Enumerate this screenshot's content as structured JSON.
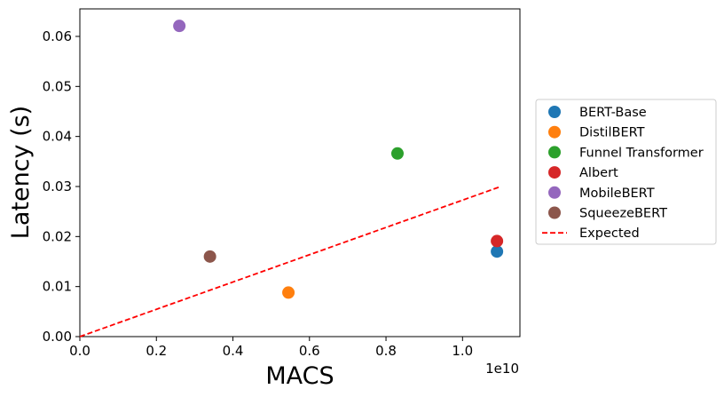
{
  "chart_data": {
    "type": "scatter",
    "title": "",
    "xlabel": "MACS",
    "ylabel": "Latency (s)",
    "x_offset_label": "1e10",
    "xlim": [
      0,
      11.5
    ],
    "ylim": [
      0,
      0.0655
    ],
    "x_ticks": [
      {
        "value": 0.0,
        "label": "0.0"
      },
      {
        "value": 2.0,
        "label": "0.2"
      },
      {
        "value": 4.0,
        "label": "0.4"
      },
      {
        "value": 6.0,
        "label": "0.6"
      },
      {
        "value": 8.0,
        "label": "0.8"
      },
      {
        "value": 10.0,
        "label": "1.0"
      }
    ],
    "y_ticks": [
      {
        "value": 0.0,
        "label": "0.00"
      },
      {
        "value": 0.01,
        "label": "0.01"
      },
      {
        "value": 0.02,
        "label": "0.02"
      },
      {
        "value": 0.03,
        "label": "0.03"
      },
      {
        "value": 0.04,
        "label": "0.04"
      },
      {
        "value": 0.05,
        "label": "0.05"
      },
      {
        "value": 0.06,
        "label": "0.06"
      }
    ],
    "series": [
      {
        "name": "BERT-Base",
        "color": "#1f77b4",
        "x": 10.9,
        "y": 0.017
      },
      {
        "name": "DistilBERT",
        "color": "#ff7f0e",
        "x": 5.45,
        "y": 0.0088
      },
      {
        "name": "Funnel Transformer",
        "color": "#2ca02c",
        "x": 8.3,
        "y": 0.0366
      },
      {
        "name": "Albert",
        "color": "#d62728",
        "x": 10.9,
        "y": 0.0191
      },
      {
        "name": "MobileBERT",
        "color": "#9467bd",
        "x": 2.6,
        "y": 0.0621
      },
      {
        "name": "SqueezeBERT",
        "color": "#8c564b",
        "x": 3.4,
        "y": 0.016
      }
    ],
    "reference_line": {
      "name": "Expected",
      "color": "#ff0000",
      "style": "dashed",
      "x": [
        0,
        11.0
      ],
      "y": [
        0,
        0.03
      ]
    },
    "grid": false,
    "legend": "outside-right"
  }
}
